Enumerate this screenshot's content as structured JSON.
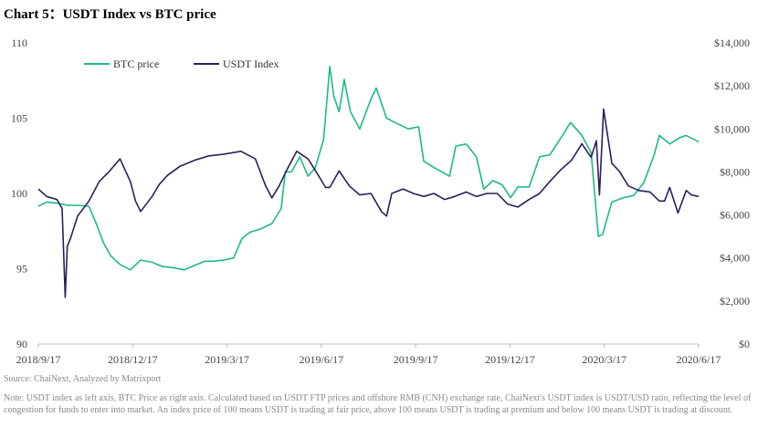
{
  "title": "Chart 5：USDT Index vs BTC price",
  "source": "Source: ChaiNext, Analyzed by Matrixport",
  "note": "Note: USDT index as left axis, BTC Price as right axis. Calculated based on USDT FTP prices and offshore RMB (CNH) exchange rate, ChaiNext's USDT index is USDT/USD ratio, reflecting the level of congestion for funds to enter into market. An index price of 100 means USDT is trading at fair price, above 100 means USDT is trading at premium and below 100 means USDT is trading at discount.",
  "colors": {
    "btc": "#1db988",
    "usdt": "#2b1f5a",
    "axis": "#bbbbbb"
  },
  "chart_data": {
    "type": "line",
    "x_tick_labels": [
      "2018/9/17",
      "2018/12/17",
      "2019/3/17",
      "2019/6/17",
      "2019/9/17",
      "2019/12/17",
      "2020/3/17",
      "2020/6/17"
    ],
    "x_range": [
      "2018-09-17",
      "2020-06-17"
    ],
    "left_axis": {
      "ylim": [
        90,
        110
      ],
      "ticks": [
        "90",
        "95",
        "100",
        "105",
        "110"
      ]
    },
    "right_axis": {
      "ylim": [
        0,
        14000
      ],
      "ticks": [
        "$0",
        "$2,000",
        "$4,000",
        "$6,000",
        "$8,000",
        "$10,000",
        "$12,000",
        "$14,000"
      ]
    },
    "legend": {
      "placement": "top-left"
    },
    "series": [
      {
        "name": "BTC price",
        "axis": "right",
        "x": [
          "2018-09-17",
          "2018-09-25",
          "2018-10-05",
          "2018-10-15",
          "2018-10-25",
          "2018-11-05",
          "2018-11-12",
          "2018-11-19",
          "2018-11-26",
          "2018-12-05",
          "2018-12-15",
          "2018-12-25",
          "2019-01-05",
          "2019-01-15",
          "2019-01-25",
          "2019-02-05",
          "2019-02-15",
          "2019-02-25",
          "2019-03-05",
          "2019-03-15",
          "2019-03-25",
          "2019-04-02",
          "2019-04-10",
          "2019-04-20",
          "2019-05-01",
          "2019-05-10",
          "2019-05-14",
          "2019-05-20",
          "2019-05-28",
          "2019-06-05",
          "2019-06-12",
          "2019-06-20",
          "2019-06-26",
          "2019-06-30",
          "2019-07-05",
          "2019-07-10",
          "2019-07-16",
          "2019-07-25",
          "2019-08-05",
          "2019-08-10",
          "2019-08-20",
          "2019-08-28",
          "2019-09-10",
          "2019-09-20",
          "2019-09-25",
          "2019-10-05",
          "2019-10-20",
          "2019-10-26",
          "2019-11-05",
          "2019-11-15",
          "2019-11-22",
          "2019-12-01",
          "2019-12-10",
          "2019-12-18",
          "2019-12-25",
          "2020-01-05",
          "2020-01-15",
          "2020-01-25",
          "2020-02-05",
          "2020-02-14",
          "2020-02-25",
          "2020-03-05",
          "2020-03-12",
          "2020-03-16",
          "2020-03-25",
          "2020-04-05",
          "2020-04-15",
          "2020-04-25",
          "2020-05-05",
          "2020-05-10",
          "2020-05-20",
          "2020-05-30",
          "2020-06-05",
          "2020-06-17"
        ],
        "values": [
          6400,
          6600,
          6550,
          6450,
          6450,
          6400,
          5600,
          4700,
          4100,
          3700,
          3450,
          3900,
          3800,
          3600,
          3550,
          3450,
          3650,
          3850,
          3850,
          3900,
          4000,
          4900,
          5200,
          5350,
          5600,
          6300,
          8000,
          8000,
          8700,
          7800,
          8200,
          9500,
          12900,
          11500,
          10800,
          12300,
          10800,
          10000,
          11400,
          11900,
          10500,
          10300,
          10000,
          10100,
          8500,
          8200,
          7800,
          9200,
          9300,
          8700,
          7200,
          7600,
          7400,
          6800,
          7300,
          7300,
          8700,
          8800,
          9600,
          10300,
          9700,
          8900,
          5000,
          5100,
          6600,
          6800,
          6900,
          7500,
          8800,
          9700,
          9300,
          9600,
          9700,
          9400
        ]
      },
      {
        "name": "USDT Index",
        "axis": "left",
        "x": [
          "2018-09-17",
          "2018-09-25",
          "2018-10-05",
          "2018-10-10",
          "2018-10-13",
          "2018-10-15",
          "2018-10-18",
          "2018-10-25",
          "2018-11-05",
          "2018-11-15",
          "2018-11-25",
          "2018-12-05",
          "2018-12-15",
          "2018-12-20",
          "2018-12-25",
          "2019-01-05",
          "2019-01-12",
          "2019-01-20",
          "2019-02-01",
          "2019-02-15",
          "2019-03-01",
          "2019-03-15",
          "2019-04-01",
          "2019-04-15",
          "2019-04-25",
          "2019-05-01",
          "2019-05-08",
          "2019-05-15",
          "2019-05-25",
          "2019-06-05",
          "2019-06-15",
          "2019-06-22",
          "2019-06-26",
          "2019-07-05",
          "2019-07-15",
          "2019-07-25",
          "2019-08-05",
          "2019-08-15",
          "2019-08-20",
          "2019-08-25",
          "2019-09-05",
          "2019-09-15",
          "2019-09-25",
          "2019-10-05",
          "2019-10-15",
          "2019-10-25",
          "2019-11-05",
          "2019-11-15",
          "2019-11-25",
          "2019-12-05",
          "2019-12-15",
          "2019-12-25",
          "2020-01-05",
          "2020-01-15",
          "2020-01-25",
          "2020-02-05",
          "2020-02-15",
          "2020-02-25",
          "2020-03-05",
          "2020-03-10",
          "2020-03-13",
          "2020-03-17",
          "2020-03-25",
          "2020-04-01",
          "2020-04-10",
          "2020-04-20",
          "2020-05-01",
          "2020-05-10",
          "2020-05-15",
          "2020-05-20",
          "2020-05-28",
          "2020-06-05",
          "2020-06-10",
          "2020-06-17"
        ],
        "values": [
          100.3,
          99.8,
          99.6,
          99.0,
          93.1,
          96.5,
          97.0,
          98.5,
          99.5,
          100.8,
          101.5,
          102.3,
          100.8,
          99.5,
          98.8,
          99.8,
          100.6,
          101.2,
          101.8,
          102.2,
          102.5,
          102.6,
          102.8,
          102.3,
          100.5,
          99.7,
          100.5,
          101.5,
          102.8,
          102.3,
          101.2,
          100.4,
          100.4,
          101.5,
          100.5,
          99.9,
          100.0,
          98.8,
          98.5,
          100.0,
          100.3,
          100.0,
          99.8,
          100.0,
          99.6,
          99.8,
          100.1,
          99.8,
          100.0,
          100.0,
          99.3,
          99.1,
          99.6,
          100.0,
          100.8,
          101.6,
          102.2,
          103.3,
          102.4,
          103.5,
          99.9,
          105.6,
          102.0,
          101.5,
          100.5,
          100.2,
          100.1,
          99.5,
          99.5,
          100.4,
          98.7,
          100.2,
          99.9,
          99.8
        ]
      }
    ]
  }
}
